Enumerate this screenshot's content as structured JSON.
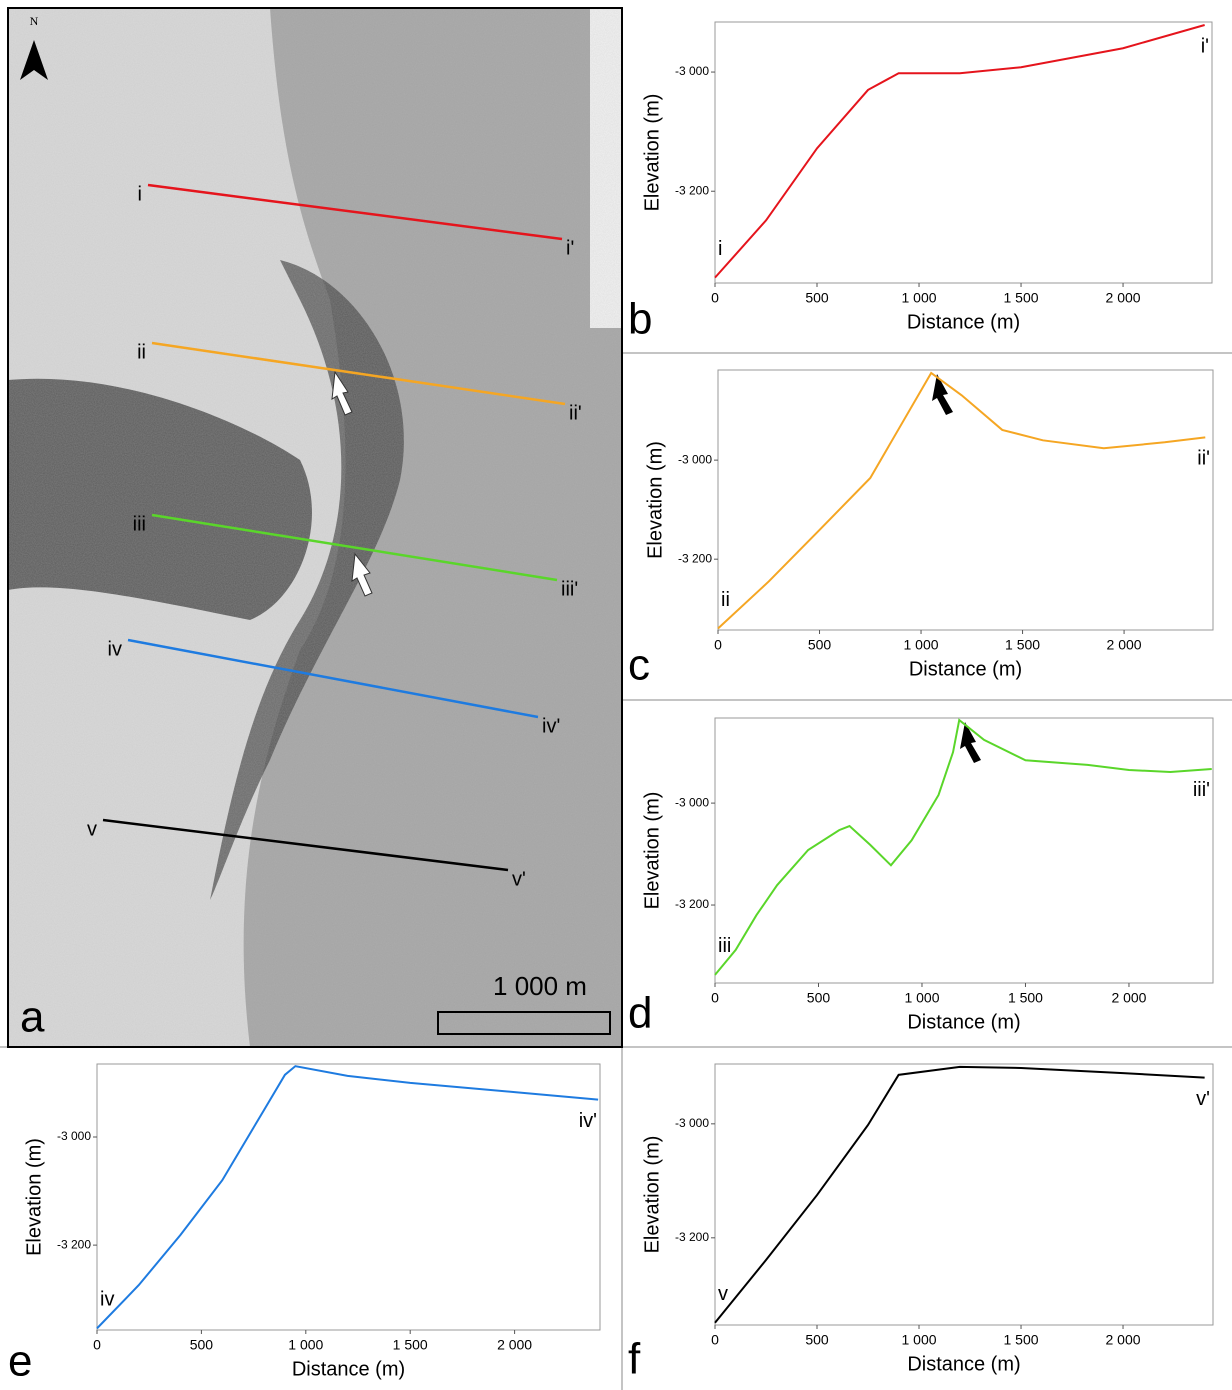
{
  "map": {
    "panel_label": "a",
    "north_label": "N",
    "scale_label": "1 000 m",
    "profiles": [
      {
        "start": "i",
        "end": "i'",
        "color": "#e5141c"
      },
      {
        "start": "ii",
        "end": "ii'",
        "color": "#f5a623"
      },
      {
        "start": "iii",
        "end": "iii'",
        "color": "#5ad62a"
      },
      {
        "start": "iv",
        "end": "iv'",
        "color": "#1e7be0"
      },
      {
        "start": "v",
        "end": "v'",
        "color": "#000000"
      }
    ]
  },
  "chart_data": [
    {
      "type": "line",
      "panel_label": "b",
      "x_label": "Distance (m)",
      "y_label": "Elevation (m)",
      "start_label": "i",
      "end_label": "i'",
      "color": "#e5141c",
      "xlim": [
        0,
        2436
      ],
      "ylim": [
        -3354,
        -2916
      ],
      "xticks": [
        0,
        500,
        {
          "value": 1000,
          "label": "1 000"
        },
        {
          "value": 1500,
          "label": "1 500"
        },
        {
          "value": 2000,
          "label": "2 000"
        }
      ],
      "yticks": [
        {
          "value": -3000,
          "label": "-3 000"
        },
        {
          "value": -3200,
          "label": "-3 200"
        }
      ],
      "x": [
        0,
        250,
        500,
        750,
        900,
        1200,
        1500,
        2000,
        2400
      ],
      "values": [
        -3345,
        -3249,
        -3128,
        -3030,
        -3002,
        -3002,
        -2992,
        -2960,
        -2921
      ]
    },
    {
      "type": "line",
      "panel_label": "c",
      "x_label": "Distance (m)",
      "y_label": "Elevation (m)",
      "start_label": "ii",
      "end_label": "ii'",
      "color": "#f5a623",
      "xlim": [
        0,
        2438
      ],
      "ylim": [
        -3343,
        -2818
      ],
      "xticks": [
        0,
        500,
        {
          "value": 1000,
          "label": "1 000"
        },
        {
          "value": 1500,
          "label": "1 500"
        },
        {
          "value": 2000,
          "label": "2 000"
        }
      ],
      "yticks": [
        {
          "value": -3000,
          "label": "-3 000"
        },
        {
          "value": -3200,
          "label": "-3 200"
        }
      ],
      "x": [
        0,
        250,
        500,
        750,
        1050,
        1200,
        1400,
        1600,
        1900,
        2200,
        2400
      ],
      "values": [
        -3340,
        -3245,
        -3141,
        -3036,
        -2824,
        -2869,
        -2939,
        -2960,
        -2976,
        -2964,
        -2954
      ]
    },
    {
      "type": "line",
      "panel_label": "d",
      "x_label": "Distance (m)",
      "y_label": "Elevation (m)",
      "start_label": "iii",
      "end_label": "iii'",
      "color": "#5ad62a",
      "xlim": [
        0,
        2406
      ],
      "ylim": [
        -3353,
        -2833
      ],
      "xticks": [
        0,
        500,
        {
          "value": 1000,
          "label": "1 000"
        },
        {
          "value": 1500,
          "label": "1 500"
        },
        {
          "value": 2000,
          "label": "2 000"
        }
      ],
      "yticks": [
        {
          "value": -3000,
          "label": "-3 000"
        },
        {
          "value": -3200,
          "label": "-3 200"
        }
      ],
      "x": [
        0,
        100,
        200,
        300,
        450,
        600,
        650,
        750,
        850,
        950,
        1080,
        1150,
        1180,
        1300,
        1500,
        1800,
        2000,
        2200,
        2400
      ],
      "values": [
        -3337,
        -3288,
        -3220,
        -3161,
        -3092,
        -3053,
        -3045,
        -3082,
        -3122,
        -3073,
        -2984,
        -2900,
        -2837,
        -2876,
        -2916,
        -2925,
        -2935,
        -2939,
        -2933
      ]
    },
    {
      "type": "line",
      "panel_label": "e",
      "x_label": "Distance (m)",
      "y_label": "Elevation (m)",
      "start_label": "iv",
      "end_label": "iv'",
      "color": "#1e7be0",
      "xlim": [
        0,
        2409
      ],
      "ylim": [
        -3357,
        -2865
      ],
      "xticks": [
        0,
        500,
        {
          "value": 1000,
          "label": "1 000"
        },
        {
          "value": 1500,
          "label": "1 500"
        },
        {
          "value": 2000,
          "label": "2 000"
        }
      ],
      "yticks": [
        {
          "value": -3000,
          "label": "-3 000"
        },
        {
          "value": -3200,
          "label": "-3 200"
        }
      ],
      "x": [
        0,
        200,
        400,
        600,
        800,
        900,
        950,
        1200,
        1500,
        2000,
        2400
      ],
      "values": [
        -3354,
        -3274,
        -3181,
        -3080,
        -2950,
        -2885,
        -2869,
        -2887,
        -2900,
        -2917,
        -2931
      ]
    },
    {
      "type": "line",
      "panel_label": "f",
      "x_label": "Distance (m)",
      "y_label": "Elevation (m)",
      "start_label": "v",
      "end_label": "v'",
      "color": "#000000",
      "xlim": [
        0,
        2441
      ],
      "ylim": [
        -3353,
        -2895
      ],
      "xticks": [
        0,
        500,
        {
          "value": 1000,
          "label": "1 000"
        },
        {
          "value": 1500,
          "label": "1 500"
        },
        {
          "value": 2000,
          "label": "2 000"
        }
      ],
      "yticks": [
        {
          "value": -3000,
          "label": "-3 000"
        },
        {
          "value": -3200,
          "label": "-3 200"
        }
      ],
      "x": [
        0,
        250,
        500,
        750,
        900,
        1200,
        1500,
        2000,
        2400
      ],
      "values": [
        -3349,
        -3239,
        -3125,
        -3002,
        -2914,
        -2900,
        -2902,
        -2911,
        -2919
      ]
    }
  ]
}
